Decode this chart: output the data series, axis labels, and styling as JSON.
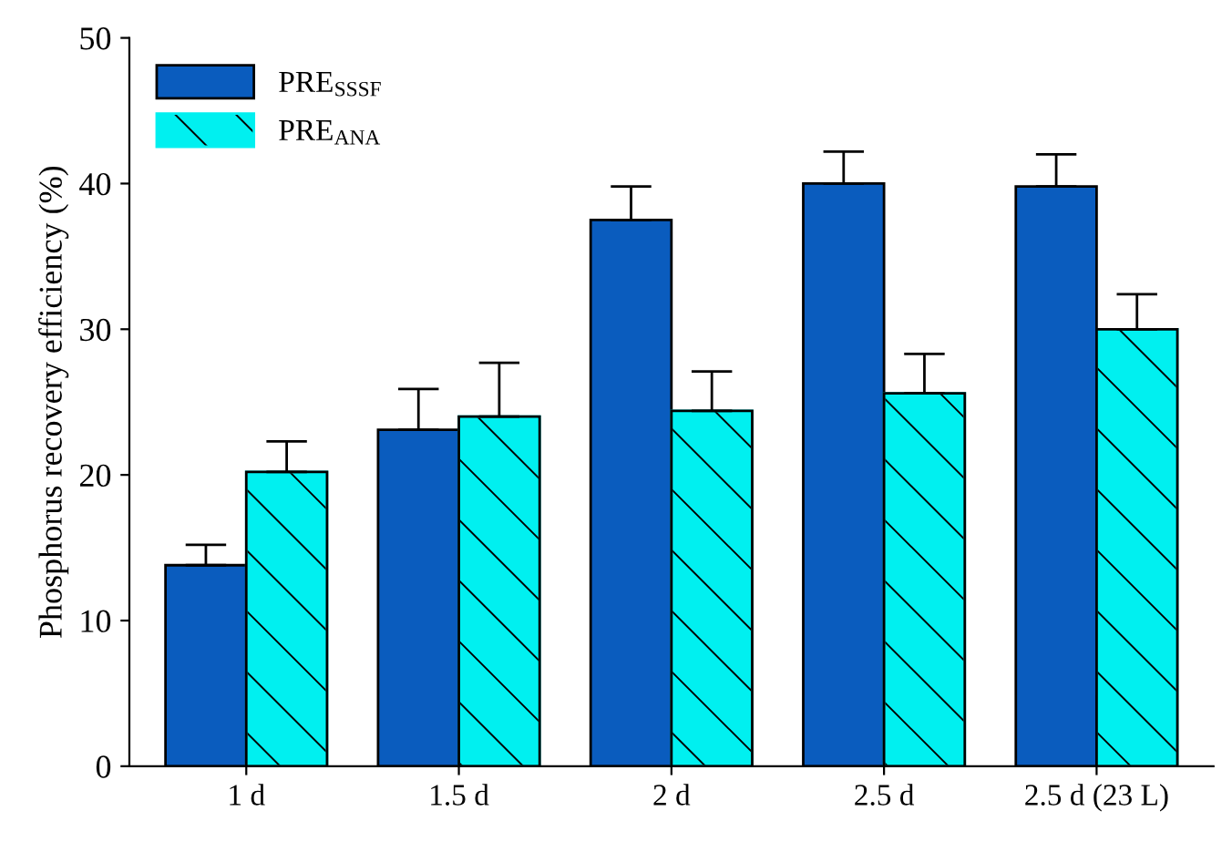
{
  "chart_data": {
    "type": "bar",
    "ylabel": "Phosphorus recovery efficiency (%)",
    "categories": [
      "1 d",
      "1.5 d",
      "2 d",
      "2.5 d",
      "2.5 d (23 L)"
    ],
    "series": [
      {
        "name": "PRE$_{SSSF}$",
        "color": "#0a5cbe",
        "values": [
          13.8,
          23.1,
          37.5,
          40.0,
          39.8
        ],
        "errors": [
          [
            13.8,
            15.2
          ],
          [
            23.1,
            25.9
          ],
          [
            37.5,
            39.8
          ],
          [
            40.0,
            42.2
          ],
          [
            39.8,
            42.0
          ]
        ]
      },
      {
        "name": "PRE$_{ANA}$",
        "color": "#00f0f0",
        "values": [
          20.2,
          24.0,
          24.4,
          25.6,
          30.0
        ],
        "errors": [
          [
            20.2,
            22.3
          ],
          [
            24.0,
            27.7
          ],
          [
            24.4,
            27.1
          ],
          [
            25.6,
            28.3
          ],
          [
            30.0,
            32.4
          ]
        ]
      }
    ],
    "ylim": [
      0,
      50
    ],
    "yticks": [
      0,
      10,
      20,
      30,
      40,
      50
    ],
    "grid": false,
    "legend": "top left"
  }
}
